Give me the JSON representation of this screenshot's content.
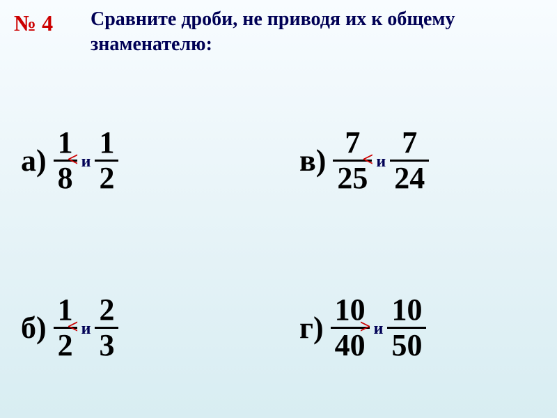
{
  "task_number": "№ 4",
  "instruction": "Сравните дроби, не приводя их к общему знаменателю:",
  "problems": {
    "a": {
      "label": "a)",
      "frac1": {
        "num": "1",
        "den": "8"
      },
      "frac2": {
        "num": "1",
        "den": "2"
      },
      "connector": "и",
      "sign": "<"
    },
    "v": {
      "label": "в)",
      "frac1": {
        "num": "7",
        "den": "25"
      },
      "frac2": {
        "num": "7",
        "den": "24"
      },
      "connector": "и",
      "sign": "<"
    },
    "b": {
      "label": "б)",
      "frac1": {
        "num": "1",
        "den": "2"
      },
      "frac2": {
        "num": "2",
        "den": "3"
      },
      "connector": "и",
      "sign": "<"
    },
    "g": {
      "label": "г)",
      "frac1": {
        "num": "10",
        "den": "40"
      },
      "frac2": {
        "num": "10",
        "den": "50"
      },
      "connector": "и",
      "sign": ">"
    }
  },
  "colors": {
    "task_number": "#cc0000",
    "instruction": "#000055",
    "sign": "#cc0000",
    "text": "#000000",
    "background_top": "#f8fcff",
    "background_bottom": "#d8edf2"
  },
  "typography": {
    "font_family": "Times New Roman",
    "task_number_size": 32,
    "instruction_size": 28,
    "fraction_size": 44,
    "connector_size": 24,
    "sign_size": 28
  }
}
